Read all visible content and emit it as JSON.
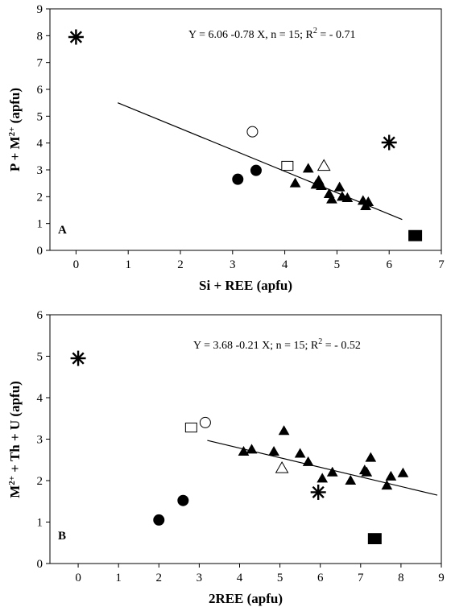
{
  "chart_data": [
    {
      "type": "scatter",
      "panel_label": "A",
      "equation": "Y = 6.06 -0.78 X, n = 15; R",
      "equation_sup": "2",
      "equation_tail": " = - 0.71",
      "xlabel": "Si + REE (apfu)",
      "ylabel_main": "P + M",
      "ylabel_sup": "2+",
      "ylabel_tail": " (apfu)",
      "xlim": [
        -0.5,
        7
      ],
      "ylim": [
        0,
        9
      ],
      "xticks": [
        0,
        1,
        2,
        3,
        4,
        5,
        6,
        7
      ],
      "yticks": [
        0,
        1,
        2,
        3,
        4,
        5,
        6,
        7,
        8,
        9
      ],
      "grid": false,
      "trendline": {
        "x": [
          0.8,
          6.25
        ],
        "y": [
          5.5,
          1.15
        ]
      },
      "series": [
        {
          "marker": "filled-triangle",
          "points": [
            [
              4.2,
              2.5
            ],
            [
              4.45,
              3.05
            ],
            [
              4.6,
              2.45
            ],
            [
              4.65,
              2.6
            ],
            [
              4.7,
              2.4
            ],
            [
              4.85,
              2.1
            ],
            [
              4.9,
              1.9
            ],
            [
              5.05,
              2.35
            ],
            [
              5.1,
              2.0
            ],
            [
              5.2,
              1.95
            ],
            [
              5.5,
              1.85
            ],
            [
              5.55,
              1.65
            ],
            [
              5.6,
              1.8
            ]
          ]
        },
        {
          "marker": "open-triangle",
          "points": [
            [
              4.75,
              3.15
            ]
          ]
        },
        {
          "marker": "filled-circle",
          "points": [
            [
              3.1,
              2.65
            ],
            [
              3.45,
              2.98
            ]
          ]
        },
        {
          "marker": "open-circle",
          "points": [
            [
              3.38,
              4.42
            ]
          ]
        },
        {
          "marker": "open-square",
          "points": [
            [
              4.05,
              3.15
            ]
          ]
        },
        {
          "marker": "filled-square",
          "points": [
            [
              6.5,
              0.55
            ]
          ]
        },
        {
          "marker": "asterisk",
          "points": [
            [
              0.0,
              7.95
            ],
            [
              6.0,
              4.02
            ]
          ]
        }
      ]
    },
    {
      "type": "scatter",
      "panel_label": "B",
      "equation": "Y = 3.68 -0.21 X; n = 15; R",
      "equation_sup": "2",
      "equation_tail": " = - 0.52",
      "xlabel": "2REE (apfu)",
      "ylabel_main": "M",
      "ylabel_sup": "2+",
      "ylabel_tail": " + Th + U (apfu)",
      "xlim": [
        -0.7,
        9
      ],
      "ylim": [
        0,
        6
      ],
      "xticks": [
        0,
        1,
        2,
        3,
        4,
        5,
        6,
        7,
        8,
        9
      ],
      "yticks": [
        0,
        1,
        2,
        3,
        4,
        5,
        6
      ],
      "grid": false,
      "trendline": {
        "x": [
          3.2,
          8.9
        ],
        "y": [
          2.97,
          1.65
        ]
      },
      "series": [
        {
          "marker": "filled-triangle",
          "points": [
            [
              4.1,
              2.7
            ],
            [
              4.3,
              2.75
            ],
            [
              4.85,
              2.7
            ],
            [
              5.1,
              3.2
            ],
            [
              5.5,
              2.65
            ],
            [
              5.7,
              2.45
            ],
            [
              6.05,
              2.05
            ],
            [
              6.3,
              2.2
            ],
            [
              6.75,
              2.0
            ],
            [
              7.1,
              2.25
            ],
            [
              7.15,
              2.2
            ],
            [
              7.25,
              2.55
            ],
            [
              7.65,
              1.88
            ],
            [
              7.75,
              2.1
            ],
            [
              8.05,
              2.18
            ]
          ]
        },
        {
          "marker": "open-triangle",
          "points": [
            [
              5.05,
              2.3
            ]
          ]
        },
        {
          "marker": "filled-circle",
          "points": [
            [
              2.0,
              1.05
            ],
            [
              2.6,
              1.52
            ]
          ]
        },
        {
          "marker": "open-circle",
          "points": [
            [
              3.15,
              3.4
            ]
          ]
        },
        {
          "marker": "open-square",
          "points": [
            [
              2.8,
              3.28
            ]
          ]
        },
        {
          "marker": "filled-square",
          "points": [
            [
              7.35,
              0.6
            ]
          ]
        },
        {
          "marker": "asterisk",
          "points": [
            [
              0.0,
              4.95
            ],
            [
              5.95,
              1.72
            ]
          ]
        }
      ]
    }
  ]
}
